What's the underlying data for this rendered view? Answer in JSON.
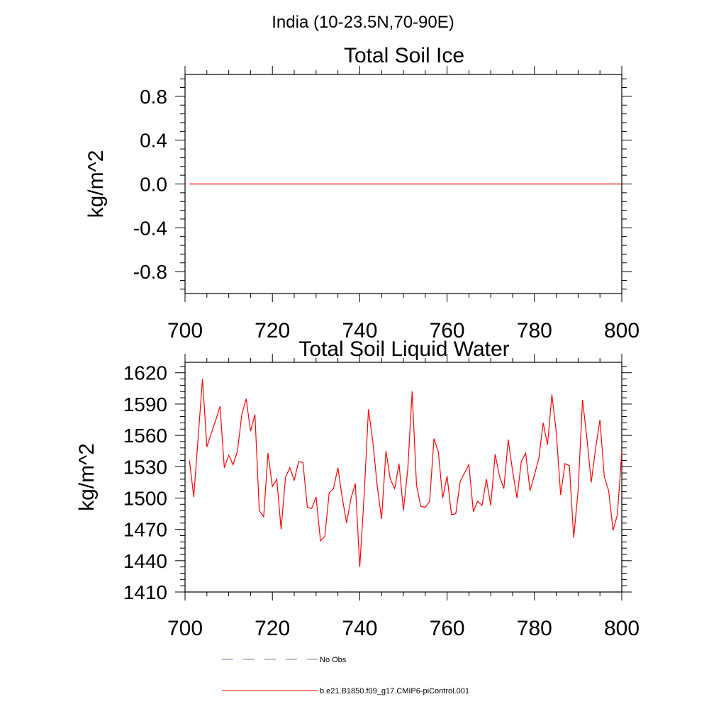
{
  "figure": {
    "title": "India (10-23.5N,70-90E)"
  },
  "chart_data": [
    {
      "type": "line",
      "title": "Total Soil Ice",
      "xlabel": "",
      "ylabel": "kg/m^2",
      "xlim": [
        700,
        800
      ],
      "ylim": [
        -1.0,
        1.0
      ],
      "x_ticks": [
        700,
        720,
        740,
        760,
        780,
        800
      ],
      "x_tick_labels": [
        "700",
        "720",
        "740",
        "760",
        "780",
        "800"
      ],
      "y_ticks": [
        -0.8,
        -0.4,
        0.0,
        0.4,
        0.8
      ],
      "y_tick_labels": [
        "-0.8",
        "-0.4",
        "0.0",
        "0.4",
        "0.8"
      ],
      "grid": false,
      "series": [
        {
          "name": "b.e21.B1850.f09_g17.CMIP6-piControl.001",
          "color": "#ff0000",
          "x": [
            701,
            800
          ],
          "y": [
            0.0,
            0.0
          ]
        }
      ]
    },
    {
      "type": "line",
      "title": "Total Soil Liquid Water",
      "xlabel": "",
      "ylabel": "kg/m^2",
      "xlim": [
        700,
        800
      ],
      "ylim": [
        1410,
        1630
      ],
      "x_ticks": [
        700,
        720,
        740,
        760,
        780,
        800
      ],
      "x_tick_labels": [
        "700",
        "720",
        "740",
        "760",
        "780",
        "800"
      ],
      "y_ticks": [
        1410,
        1440,
        1470,
        1500,
        1530,
        1560,
        1590,
        1620
      ],
      "y_tick_labels": [
        "1410",
        "1440",
        "1470",
        "1500",
        "1530",
        "1560",
        "1590",
        "1620"
      ],
      "grid": false,
      "series": [
        {
          "name": "b.e21.B1850.f09_g17.CMIP6-piControl.001",
          "color": "#ff0000",
          "x": [
            701,
            702,
            703,
            704,
            705,
            706,
            707,
            708,
            709,
            710,
            711,
            712,
            713,
            714,
            715,
            716,
            717,
            718,
            719,
            720,
            721,
            722,
            723,
            724,
            725,
            726,
            727,
            728,
            729,
            730,
            731,
            732,
            733,
            734,
            735,
            736,
            737,
            738,
            739,
            740,
            741,
            742,
            743,
            744,
            745,
            746,
            747,
            748,
            749,
            750,
            751,
            752,
            753,
            754,
            755,
            756,
            757,
            758,
            759,
            760,
            761,
            762,
            763,
            764,
            765,
            766,
            767,
            768,
            769,
            770,
            771,
            772,
            773,
            774,
            775,
            776,
            777,
            778,
            779,
            780,
            781,
            782,
            783,
            784,
            785,
            786,
            787,
            788,
            789,
            790,
            791,
            792,
            793,
            794,
            795,
            796,
            797,
            798,
            799,
            800
          ],
          "y": [
            1536,
            1501,
            1558,
            1614,
            1549,
            1562,
            1574,
            1588,
            1529,
            1541,
            1532,
            1545,
            1580,
            1595,
            1564,
            1580,
            1488,
            1482,
            1543,
            1511,
            1518,
            1470,
            1520,
            1529,
            1517,
            1535,
            1534,
            1491,
            1490,
            1501,
            1459,
            1463,
            1505,
            1509,
            1529,
            1500,
            1476,
            1500,
            1514,
            1434,
            1502,
            1585,
            1554,
            1512,
            1480,
            1545,
            1518,
            1509,
            1533,
            1488,
            1528,
            1602,
            1512,
            1492,
            1491,
            1497,
            1557,
            1544,
            1500,
            1521,
            1484,
            1485,
            1516,
            1524,
            1532,
            1487,
            1497,
            1493,
            1518,
            1493,
            1542,
            1521,
            1509,
            1556,
            1526,
            1500,
            1535,
            1543,
            1507,
            1522,
            1538,
            1572,
            1551,
            1599,
            1563,
            1503,
            1533,
            1531,
            1462,
            1507,
            1594,
            1558,
            1515,
            1547,
            1575,
            1520,
            1507,
            1469,
            1484,
            1544
          ]
        }
      ]
    }
  ],
  "legend": {
    "entries": [
      {
        "label": "No Obs",
        "color": "#6f7ca3",
        "style": "dashed"
      },
      {
        "label": "b.e21.B1850.f09_g17.CMIP6-piControl.001",
        "color": "#ff0000",
        "style": "solid"
      }
    ]
  }
}
